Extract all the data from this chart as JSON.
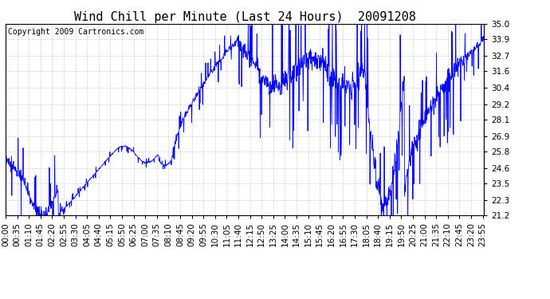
{
  "title": "Wind Chill per Minute (Last 24 Hours)  20091208",
  "copyright": "Copyright 2009 Cartronics.com",
  "line_color": "#0000ff",
  "bg_color": "#ffffff",
  "plot_bg_color": "#ffffff",
  "grid_color": "#aaaaaa",
  "yticks": [
    21.2,
    22.3,
    23.5,
    24.6,
    25.8,
    26.9,
    28.1,
    29.2,
    30.4,
    31.6,
    32.7,
    33.9,
    35.0
  ],
  "ylim": [
    21.2,
    35.0
  ],
  "title_fontsize": 11,
  "tick_fontsize": 7.5,
  "copyright_fontsize": 7
}
